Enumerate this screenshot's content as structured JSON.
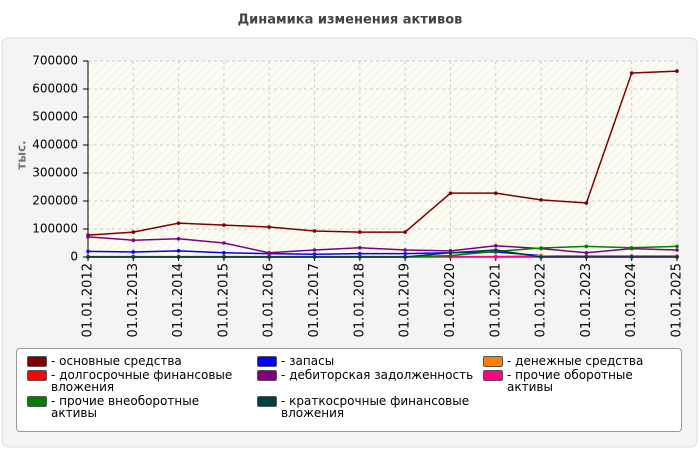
{
  "chart_data": {
    "type": "line",
    "title": "Динамика изменения активов",
    "y_label": "тыс.",
    "categories": [
      "01.01.2012",
      "01.01.2013",
      "01.01.2014",
      "01.01.2015",
      "01.01.2016",
      "01.01.2017",
      "01.01.2018",
      "01.01.2019",
      "01.01.2020",
      "01.01.2021",
      "01.01.2022",
      "01.01.2023",
      "01.01.2024",
      "01.01.2025"
    ],
    "ylim": [
      0,
      700000
    ],
    "yticks": [
      0,
      100000,
      200000,
      300000,
      400000,
      500000,
      600000,
      700000
    ],
    "grid": true,
    "series": [
      {
        "name": "основные средства",
        "color": "#800000",
        "values": [
          78000,
          89000,
          121000,
          114000,
          107000,
          93000,
          89000,
          89000,
          228000,
          228000,
          204000,
          193000,
          657000,
          664000
        ]
      },
      {
        "name": "запасы",
        "color": "#0000ff",
        "values": [
          20000,
          18000,
          22000,
          15000,
          12000,
          10000,
          12000,
          12000,
          15000,
          18000,
          5000,
          3000,
          3000,
          3000
        ]
      },
      {
        "name": "денежные средства",
        "color": "#ff8000",
        "values": [
          2000,
          2000,
          2000,
          2000,
          2000,
          2000,
          2000,
          2000,
          2000,
          2000,
          5000,
          2000,
          2000,
          2000
        ]
      },
      {
        "name": "долгосрочные финансовые вложения",
        "color": "#ff0000",
        "values": [
          0,
          0,
          0,
          0,
          0,
          0,
          0,
          0,
          0,
          0,
          0,
          0,
          0,
          0
        ]
      },
      {
        "name": "дебиторская задолженность",
        "color": "#800080",
        "values": [
          72000,
          60000,
          65000,
          50000,
          15000,
          25000,
          33000,
          25000,
          22000,
          40000,
          30000,
          15000,
          30000,
          25000
        ]
      },
      {
        "name": "прочие оборотные активы",
        "color": "#ff0080",
        "values": [
          1000,
          1000,
          1000,
          1000,
          1000,
          1000,
          1000,
          1000,
          1000,
          1000,
          1000,
          1000,
          1000,
          1000
        ]
      },
      {
        "name": "прочие внеоборотные активы",
        "color": "#008000",
        "values": [
          0,
          0,
          0,
          0,
          0,
          0,
          0,
          0,
          5000,
          20000,
          32000,
          38000,
          33000,
          38000
        ]
      },
      {
        "name": "краткосрочные финансовые вложения",
        "color": "#004040",
        "values": [
          0,
          0,
          0,
          0,
          0,
          0,
          0,
          0,
          15000,
          25000,
          0,
          0,
          0,
          0
        ]
      }
    ]
  }
}
